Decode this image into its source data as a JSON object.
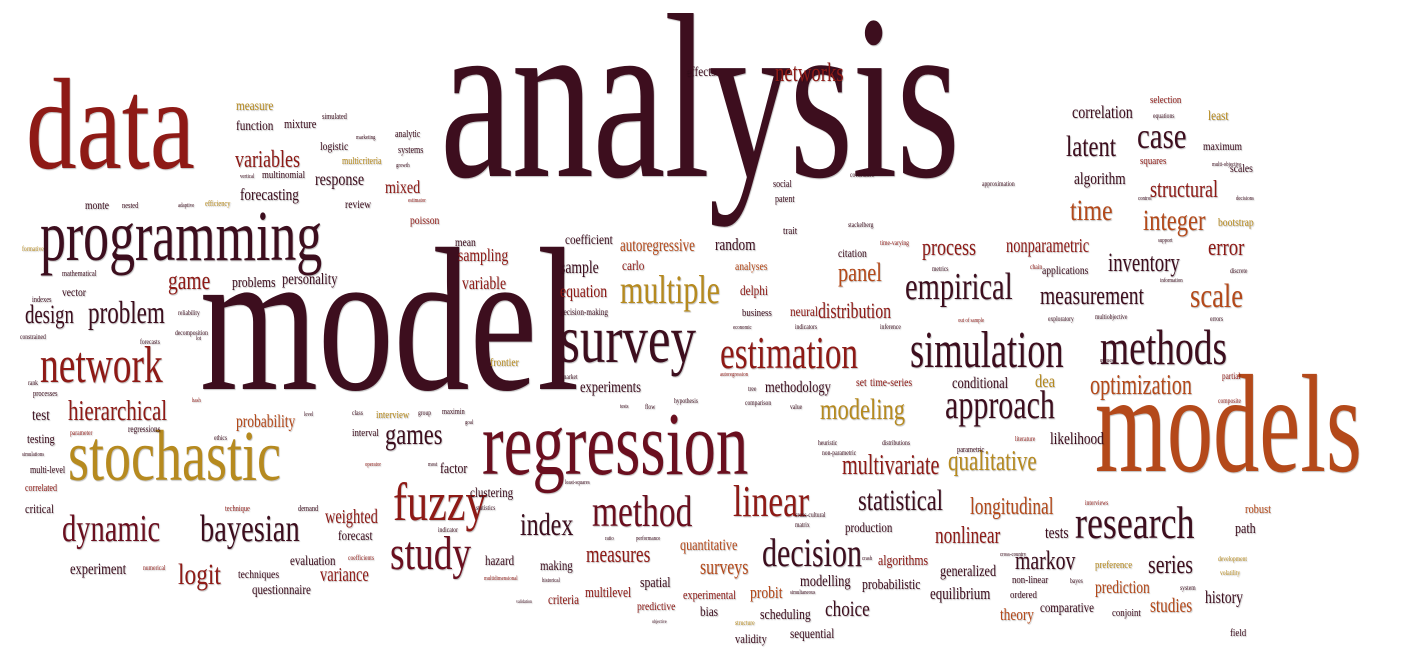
{
  "palette": {
    "dark": "#3d0e1e",
    "maroon": "#6a0f1f",
    "red": "#8e1a16",
    "orange": "#b4491a",
    "gold": "#b68a1f"
  },
  "words": {
    "analysis": "analysis",
    "model": "model",
    "models": "models",
    "data": "data",
    "regression": "regression",
    "programming": "programming",
    "stochastic": "stochastic",
    "survey": "survey",
    "network": "network",
    "research": "research",
    "simulation": "simulation",
    "methods": "methods",
    "estimation": "estimation",
    "fuzzy": "fuzzy",
    "method": "method",
    "linear": "linear",
    "empirical": "empirical",
    "multiple": "multiple",
    "approach": "approach",
    "decision": "decision",
    "dynamic": "dynamic",
    "bayesian": "bayesian",
    "study": "study",
    "modeling": "modeling",
    "qualitative": "qualitative",
    "multivariate": "multivariate",
    "statistical": "statistical",
    "hierarchical": "hierarchical",
    "problem": "problem",
    "design": "design",
    "game": "game",
    "games": "games",
    "index": "index",
    "case": "case",
    "latent": "latent",
    "time": "time",
    "structural": "structural",
    "integer": "integer",
    "error": "error",
    "inventory": "inventory",
    "measurement": "measurement",
    "scale": "scale",
    "optimization": "optimization",
    "process": "process",
    "panel": "panel",
    "distribution": "distribution",
    "nonparametric": "nonparametric",
    "variables": "variables",
    "networks": "networks",
    "correlation": "correlation",
    "algorithm": "algorithm",
    "logit": "logit",
    "series": "series",
    "markov": "markov",
    "longitudinal": "longitudinal",
    "nonlinear": "nonlinear",
    "measures": "measures",
    "surveys": "surveys",
    "weighted": "weighted",
    "variance": "variance",
    "forecasting": "forecasting",
    "mixed": "mixed",
    "response": "response",
    "monte": "monte",
    "vector": "vector",
    "test": "test",
    "testing": "testing",
    "probability": "probability",
    "personality": "personality",
    "problems": "problems",
    "sampling": "sampling",
    "variable": "variable",
    "equation": "equation",
    "sample": "sample",
    "coefficient": "coefficient",
    "autoregressive": "autoregressive",
    "random": "random",
    "carlo": "carlo",
    "delphi": "delphi",
    "analyses": "analyses",
    "experiments": "experiments",
    "methodology": "methodology",
    "neural": "neural",
    "conditional": "conditional",
    "dea": "dea",
    "likelihood": "likelihood",
    "tests": "tests",
    "path": "path",
    "robust": "robust",
    "prediction": "prediction",
    "studies": "studies",
    "history": "history",
    "comparative": "comparative",
    "theory": "theory",
    "equilibrium": "equilibrium",
    "generalized": "generalized",
    "choice": "choice",
    "modelling": "modelling",
    "probabilistic": "probabilistic",
    "algorithms": "algorithms",
    "quantitative": "quantitative",
    "production": "production",
    "probit": "probit",
    "scheduling": "scheduling",
    "sequential": "sequential",
    "validity": "validity",
    "bias": "bias",
    "experimental": "experimental",
    "multilevel": "multilevel",
    "spatial": "spatial",
    "predictive": "predictive",
    "criteria": "criteria",
    "making": "making",
    "hazard": "hazard",
    "clustering": "clustering",
    "factor": "factor",
    "evaluation": "evaluation",
    "forecast": "forecast",
    "questionnaire": "questionnaire",
    "techniques": "techniques",
    "experiment": "experiment",
    "critical": "critical",
    "function": "function",
    "measure": "measure",
    "mixture": "mixture",
    "logistic": "logistic",
    "multinomial": "multinomial",
    "review": "review",
    "poisson": "poisson",
    "mean": "mean",
    "effects": "effects",
    "selection": "selection",
    "least": "least",
    "maximum": "maximum",
    "squares": "squares",
    "scales": "scales",
    "bootstrap": "bootstrap",
    "applications": "applications",
    "patent": "patent",
    "social": "social",
    "trait": "trait",
    "citation": "citation",
    "business": "business",
    "interval": "interval",
    "interview": "interview",
    "frontier": "frontier",
    "ordered": "ordered",
    "non-linear": "non-linear",
    "preference": "preference",
    "conjoint": "conjoint",
    "field": "field",
    "set": "set",
    "time-series": "time-series",
    "regressions": "regressions",
    "multicriteria": "multicriteria",
    "analytic": "analytic",
    "systems": "systems",
    "simulated": "simulated",
    "efficiency": "efficiency",
    "indexes": "indexes",
    "partial": "partial",
    "composite": "composite",
    "multiobjective": "multiobjective",
    "exploratory": "exploratory",
    "errors": "errors",
    "multi-level": "multi-level",
    "correlated": "correlated",
    "processes": "processes",
    "rank": "rank",
    "mathematical": "mathematical",
    "formative": "formative",
    "decision-making": "decision-making",
    "decomposition": "decomposition",
    "forecasts": "forecasts",
    "reliability": "reliability",
    "constrained": "constrained",
    "approximation": "approximation",
    "covariance": "covariance",
    "technique": "technique",
    "demand": "demand",
    "numerical": "numerical",
    "coefficients": "coefficients",
    "heuristic": "heuristic",
    "distributions": "distributions",
    "parametric": "parametric",
    "literature": "literature",
    "cross-cultural": "cross-cultural",
    "matrix": "matrix",
    "non-parametric": "non-parametric",
    "interviews": "interviews",
    "development": "development",
    "volatility": "volatility",
    "bayes": "bayes",
    "system": "system",
    "cross-country": "cross-country",
    "hypothesis": "hypothesis",
    "comparison": "comparison",
    "value": "value",
    "market": "market",
    "tree": "tree",
    "flow": "flow",
    "tests_small": "tests",
    "class": "class",
    "group": "group",
    "maximin": "maximin",
    "ethics": "ethics",
    "level": "level",
    "parameter": "parameter",
    "simulations": "simulations",
    "stackelberg": "stackelberg",
    "time-varying": "time-varying",
    "chain": "chain",
    "metrics": "metrics",
    "inference": "inference",
    "indicators": "indicators",
    "economic": "economic",
    "support": "support",
    "information": "information",
    "discrete": "discrete",
    "decisions": "decisions",
    "multi-objective": "multi-objective",
    "equations": "equations",
    "control": "control",
    "out-of-sample": "out of sample",
    "queues": "queues",
    "statistics": "statistics",
    "least-squares": "least-squares",
    "ratio": "ratio",
    "performance": "performance",
    "operator": "operator",
    "goal": "goal",
    "multidimensional": "multidimensional",
    "historical": "historical",
    "validation": "validation",
    "objective": "objective",
    "structure": "structure",
    "simultaneous": "simultaneous",
    "growth": "growth",
    "marketing": "marketing",
    "vertical": "vertical",
    "nested": "nested",
    "adaptive": "adaptive",
    "estimator": "estimator",
    "indicator": "indicator",
    "lot": "lot",
    "hash": "hash",
    "most": "most",
    "autoregression": "autoregression",
    "crash": "crash"
  }
}
